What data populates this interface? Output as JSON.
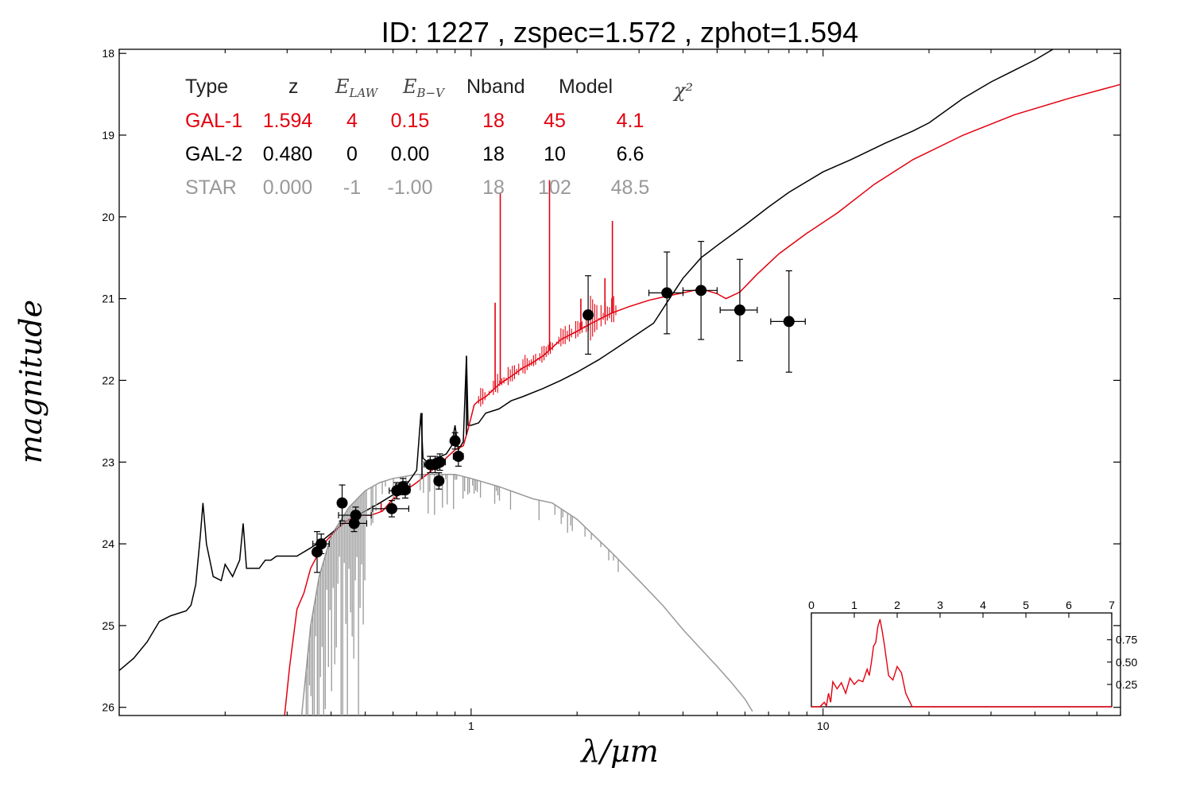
{
  "chart_data": {
    "type": "line",
    "title": "ID:  1227  , zspec=1.572 , zphot=1.594",
    "xlabel": "λ/μm",
    "ylabel": "magnitude",
    "xscale": "log",
    "xlim": [
      0.1,
      70
    ],
    "ylim": [
      26.1,
      17.95
    ],
    "x_ticks": [
      {
        "v": 1,
        "label": "1"
      },
      {
        "v": 10,
        "label": "10"
      }
    ],
    "y_ticks": [
      {
        "v": 18,
        "label": "18"
      },
      {
        "v": 19,
        "label": "19"
      },
      {
        "v": 20,
        "label": "20"
      },
      {
        "v": 21,
        "label": "21"
      },
      {
        "v": 22,
        "label": "22"
      },
      {
        "v": 23,
        "label": "23"
      },
      {
        "v": 24,
        "label": "24"
      },
      {
        "v": 25,
        "label": "25"
      },
      {
        "v": 26,
        "label": "26"
      }
    ],
    "colors": {
      "gal1": "#e3000f",
      "gal2": "#000000",
      "star": "#999999"
    },
    "legend": {
      "placement": "top-left",
      "headers": [
        "Type",
        "z",
        "E_LAW",
        "E_B-V",
        "Nband",
        "Model",
        "χ²"
      ],
      "rows": [
        {
          "type": "GAL-1",
          "z": "1.594",
          "elaw": "4",
          "ebv": "0.15",
          "nband": "18",
          "model": "45",
          "chi2": "4.1",
          "color": "#e3000f"
        },
        {
          "type": "GAL-2",
          "z": "0.480",
          "elaw": "0",
          "ebv": "0.00",
          "nband": "18",
          "model": "10",
          "chi2": "6.6",
          "color": "#000000"
        },
        {
          "type": "STAR",
          "z": "0.000",
          "elaw": "-1",
          "ebv": "-1.00",
          "nband": "18",
          "model": "102",
          "chi2": "48.5",
          "color": "#999999"
        }
      ]
    },
    "photometry": [
      {
        "x": 0.365,
        "y": 24.1,
        "ye": 0.25,
        "xe": 0.01
      },
      {
        "x": 0.375,
        "y": 24.0,
        "ye": 0.12,
        "xe": 0.02
      },
      {
        "x": 0.43,
        "y": 23.5,
        "ye": 0.22,
        "xe": 0.0
      },
      {
        "x": 0.465,
        "y": 23.75,
        "ye": 0.1,
        "xe": 0.04
      },
      {
        "x": 0.47,
        "y": 23.65,
        "ye": 0.1,
        "xe": 0.05
      },
      {
        "x": 0.595,
        "y": 23.57,
        "ye": 0.1,
        "xe": 0.07
      },
      {
        "x": 0.615,
        "y": 23.35,
        "ye": 0.1,
        "xe": 0.03
      },
      {
        "x": 0.64,
        "y": 23.3,
        "ye": 0.1,
        "xe": 0.03
      },
      {
        "x": 0.65,
        "y": 23.34,
        "ye": 0.1,
        "xe": 0.02
      },
      {
        "x": 0.765,
        "y": 23.03,
        "ye": 0.1,
        "xe": 0.03
      },
      {
        "x": 0.79,
        "y": 23.03,
        "ye": 0.1,
        "xe": 0.03
      },
      {
        "x": 0.81,
        "y": 23.23,
        "ye": 0.1,
        "xe": 0.02
      },
      {
        "x": 0.815,
        "y": 23.0,
        "ye": 0.1,
        "xe": 0.03
      },
      {
        "x": 0.9,
        "y": 22.74,
        "ye": 0.1,
        "xe": 0.02
      },
      {
        "x": 0.92,
        "y": 22.93,
        "ye": 0.12,
        "xe": 0.03
      },
      {
        "x": 2.15,
        "y": 21.2,
        "ye": 0.48,
        "xe": 0.0
      },
      {
        "x": 3.6,
        "y": 20.93,
        "ye": 0.5,
        "xe": 0.4
      },
      {
        "x": 4.5,
        "y": 20.9,
        "ye": 0.6,
        "xe": 0.5
      },
      {
        "x": 5.8,
        "y": 21.14,
        "ye": 0.62,
        "xe": 0.7
      },
      {
        "x": 8.0,
        "y": 21.28,
        "ye": 0.62,
        "xe": 0.9
      }
    ],
    "series": [
      {
        "key": "gal1",
        "points": [
          [
            0.295,
            26.1
          ],
          [
            0.305,
            25.5
          ],
          [
            0.32,
            24.8
          ],
          [
            0.335,
            24.6
          ],
          [
            0.35,
            24.3
          ],
          [
            0.37,
            24.1
          ],
          [
            0.39,
            23.95
          ],
          [
            0.42,
            23.8
          ],
          [
            0.45,
            23.7
          ],
          [
            0.48,
            23.65
          ],
          [
            0.52,
            23.65
          ],
          [
            0.56,
            23.6
          ],
          [
            0.6,
            23.45
          ],
          [
            0.65,
            23.35
          ],
          [
            0.7,
            23.25
          ],
          [
            0.75,
            23.15
          ],
          [
            0.8,
            23.05
          ],
          [
            0.85,
            22.95
          ],
          [
            0.9,
            22.85
          ],
          [
            0.95,
            22.8
          ],
          [
            0.98,
            22.6
          ],
          [
            1.0,
            22.45
          ],
          [
            1.02,
            22.3
          ],
          [
            1.05,
            22.25
          ],
          [
            1.1,
            22.2
          ],
          [
            1.2,
            22.05
          ],
          [
            1.3,
            21.95
          ],
          [
            1.4,
            21.85
          ],
          [
            1.5,
            21.78
          ],
          [
            1.6,
            21.7
          ],
          [
            1.7,
            21.6
          ],
          [
            1.8,
            21.5
          ],
          [
            2.0,
            21.4
          ],
          [
            2.2,
            21.3
          ],
          [
            2.5,
            21.18
          ],
          [
            2.8,
            21.1
          ],
          [
            3.2,
            21.02
          ],
          [
            3.6,
            20.97
          ],
          [
            4.0,
            20.93
          ],
          [
            4.5,
            20.88
          ],
          [
            5.0,
            20.94
          ],
          [
            5.3,
            21.0
          ],
          [
            5.8,
            20.92
          ],
          [
            6.5,
            20.7
          ],
          [
            7.5,
            20.45
          ],
          [
            9.0,
            20.2
          ],
          [
            11.0,
            19.95
          ],
          [
            14.0,
            19.6
          ],
          [
            18.0,
            19.3
          ],
          [
            25.0,
            19.0
          ],
          [
            35.0,
            18.75
          ],
          [
            50.0,
            18.55
          ],
          [
            70.0,
            18.38
          ]
        ]
      },
      {
        "key": "gal2",
        "points": [
          [
            0.1,
            25.55
          ],
          [
            0.11,
            25.4
          ],
          [
            0.12,
            25.2
          ],
          [
            0.13,
            24.95
          ],
          [
            0.14,
            24.88
          ],
          [
            0.155,
            24.82
          ],
          [
            0.16,
            24.75
          ],
          [
            0.165,
            24.5
          ],
          [
            0.17,
            23.9
          ],
          [
            0.173,
            23.5
          ],
          [
            0.177,
            24.0
          ],
          [
            0.185,
            24.4
          ],
          [
            0.195,
            24.45
          ],
          [
            0.2,
            24.25
          ],
          [
            0.21,
            24.4
          ],
          [
            0.22,
            24.2
          ],
          [
            0.225,
            23.75
          ],
          [
            0.23,
            24.3
          ],
          [
            0.24,
            24.3
          ],
          [
            0.25,
            24.3
          ],
          [
            0.26,
            24.2
          ],
          [
            0.27,
            24.2
          ],
          [
            0.28,
            24.15
          ],
          [
            0.3,
            24.15
          ],
          [
            0.32,
            24.15
          ],
          [
            0.35,
            24.05
          ],
          [
            0.38,
            23.95
          ],
          [
            0.42,
            23.8
          ],
          [
            0.45,
            23.7
          ],
          [
            0.5,
            23.6
          ],
          [
            0.55,
            23.5
          ],
          [
            0.6,
            23.4
          ],
          [
            0.65,
            23.3
          ],
          [
            0.7,
            23.1
          ],
          [
            0.72,
            22.4
          ],
          [
            0.73,
            22.95
          ],
          [
            0.75,
            23.0
          ],
          [
            0.8,
            22.95
          ],
          [
            0.85,
            22.9
          ],
          [
            0.88,
            22.8
          ],
          [
            0.9,
            22.55
          ],
          [
            0.92,
            22.85
          ],
          [
            0.95,
            22.75
          ],
          [
            0.97,
            21.7
          ],
          [
            0.98,
            22.55
          ],
          [
            1.0,
            22.55
          ],
          [
            1.05,
            22.52
          ],
          [
            1.1,
            22.4
          ],
          [
            1.2,
            22.35
          ],
          [
            1.3,
            22.25
          ],
          [
            1.4,
            22.2
          ],
          [
            1.6,
            22.1
          ],
          [
            1.8,
            22.0
          ],
          [
            2.0,
            21.9
          ],
          [
            2.3,
            21.75
          ],
          [
            2.6,
            21.6
          ],
          [
            3.0,
            21.42
          ],
          [
            3.3,
            21.3
          ],
          [
            3.6,
            21.05
          ],
          [
            4.0,
            20.75
          ],
          [
            4.5,
            20.5
          ],
          [
            5.0,
            20.35
          ],
          [
            6.0,
            20.1
          ],
          [
            7.0,
            19.88
          ],
          [
            8.0,
            19.7
          ],
          [
            10.0,
            19.45
          ],
          [
            12.0,
            19.3
          ],
          [
            15.0,
            19.1
          ],
          [
            18.0,
            18.95
          ],
          [
            20.0,
            18.85
          ],
          [
            25.0,
            18.55
          ],
          [
            30.0,
            18.35
          ],
          [
            40.0,
            18.08
          ],
          [
            45.0,
            17.95
          ]
        ]
      },
      {
        "key": "star",
        "points": [
          [
            0.33,
            26.1
          ],
          [
            0.35,
            25.0
          ],
          [
            0.37,
            24.4
          ],
          [
            0.4,
            23.9
          ],
          [
            0.45,
            23.55
          ],
          [
            0.5,
            23.35
          ],
          [
            0.55,
            23.25
          ],
          [
            0.6,
            23.2
          ],
          [
            0.7,
            23.15
          ],
          [
            0.8,
            23.15
          ],
          [
            0.9,
            23.15
          ],
          [
            1.0,
            23.2
          ],
          [
            1.2,
            23.3
          ],
          [
            1.5,
            23.45
          ],
          [
            1.7,
            23.5
          ],
          [
            2.0,
            23.7
          ],
          [
            2.5,
            24.1
          ],
          [
            3.0,
            24.45
          ],
          [
            3.5,
            24.75
          ],
          [
            4.0,
            25.05
          ],
          [
            5.0,
            25.5
          ],
          [
            5.5,
            25.7
          ],
          [
            6.0,
            25.9
          ],
          [
            6.3,
            26.05
          ]
        ]
      }
    ],
    "emission_lines": [
      {
        "x": 0.555,
        "top": 23.5
      },
      {
        "x": 0.725,
        "top": 22.4
      },
      {
        "x": 0.97,
        "top": 21.7
      },
      {
        "x": 1.17,
        "top": 21.05
      },
      {
        "x": 1.21,
        "top": 19.7
      },
      {
        "x": 1.67,
        "top": 19.55
      },
      {
        "x": 2.05,
        "top": 21.0
      },
      {
        "x": 2.4,
        "top": 20.75
      },
      {
        "x": 2.52,
        "top": 20.05
      }
    ],
    "inset": {
      "title": "",
      "xlim": [
        0,
        7
      ],
      "ylim": [
        0,
        1.05
      ],
      "x_ticks": [
        0,
        1,
        2,
        3,
        4,
        5,
        6,
        7
      ],
      "y_ticks": [
        {
          "v": 0.25,
          "label": "0.25"
        },
        {
          "v": 0.5,
          "label": "0.50"
        },
        {
          "v": 0.75,
          "label": "0.75"
        }
      ],
      "pdf": [
        [
          0,
          0.0
        ],
        [
          0.2,
          0.0
        ],
        [
          0.3,
          0.05
        ],
        [
          0.35,
          0.01
        ],
        [
          0.4,
          0.15
        ],
        [
          0.45,
          0.05
        ],
        [
          0.5,
          0.28
        ],
        [
          0.6,
          0.2
        ],
        [
          0.7,
          0.27
        ],
        [
          0.8,
          0.15
        ],
        [
          0.9,
          0.32
        ],
        [
          1.0,
          0.25
        ],
        [
          1.1,
          0.3
        ],
        [
          1.2,
          0.28
        ],
        [
          1.3,
          0.42
        ],
        [
          1.35,
          0.35
        ],
        [
          1.4,
          0.5
        ],
        [
          1.45,
          0.68
        ],
        [
          1.5,
          0.72
        ],
        [
          1.55,
          0.9
        ],
        [
          1.6,
          0.98
        ],
        [
          1.65,
          0.85
        ],
        [
          1.7,
          0.7
        ],
        [
          1.8,
          0.35
        ],
        [
          1.9,
          0.3
        ],
        [
          2.0,
          0.45
        ],
        [
          2.1,
          0.38
        ],
        [
          2.2,
          0.15
        ],
        [
          2.3,
          0.05
        ],
        [
          2.35,
          0.0
        ],
        [
          7.0,
          0.0
        ]
      ]
    }
  }
}
